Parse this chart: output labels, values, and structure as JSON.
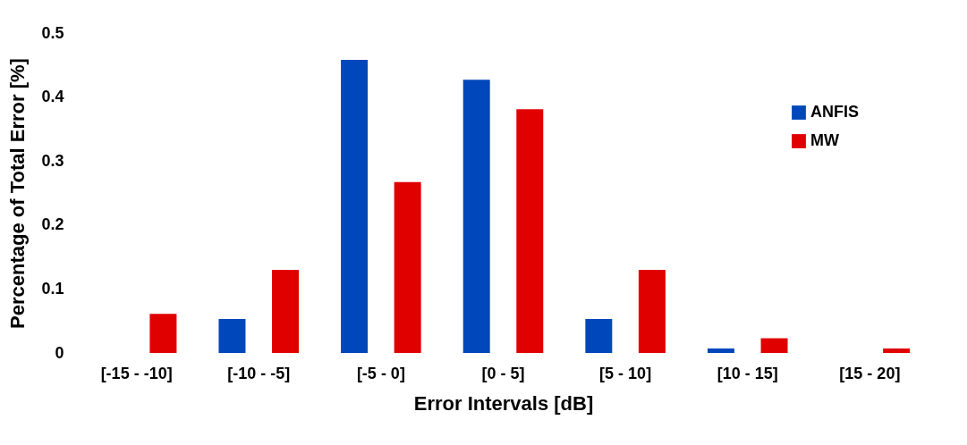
{
  "chart_data": {
    "type": "bar",
    "xlabel": "Error Intervals [dB]",
    "ylabel": "Percentage of Total Error [%]",
    "categories": [
      "[-15 - -10]",
      "[-10 - -5]",
      "[-5 - 0]",
      "[0 - 5]",
      "[5 - 10]",
      "[10 - 15]",
      "[15 - 20]"
    ],
    "series": [
      {
        "name": "ANFIS",
        "color": "#0047bb",
        "values": [
          0,
          0.053,
          0.458,
          0.427,
          0.053,
          0.007,
          0
        ]
      },
      {
        "name": "MW",
        "color": "#e00000",
        "values": [
          0.061,
          0.13,
          0.267,
          0.381,
          0.13,
          0.023,
          0.007
        ]
      }
    ],
    "ylim": [
      0,
      0.5
    ],
    "yticks": [
      {
        "value": 0,
        "label": "0"
      },
      0.1,
      0.2,
      0.3,
      0.4,
      0.5
    ],
    "grid": false,
    "legend": "top right"
  }
}
